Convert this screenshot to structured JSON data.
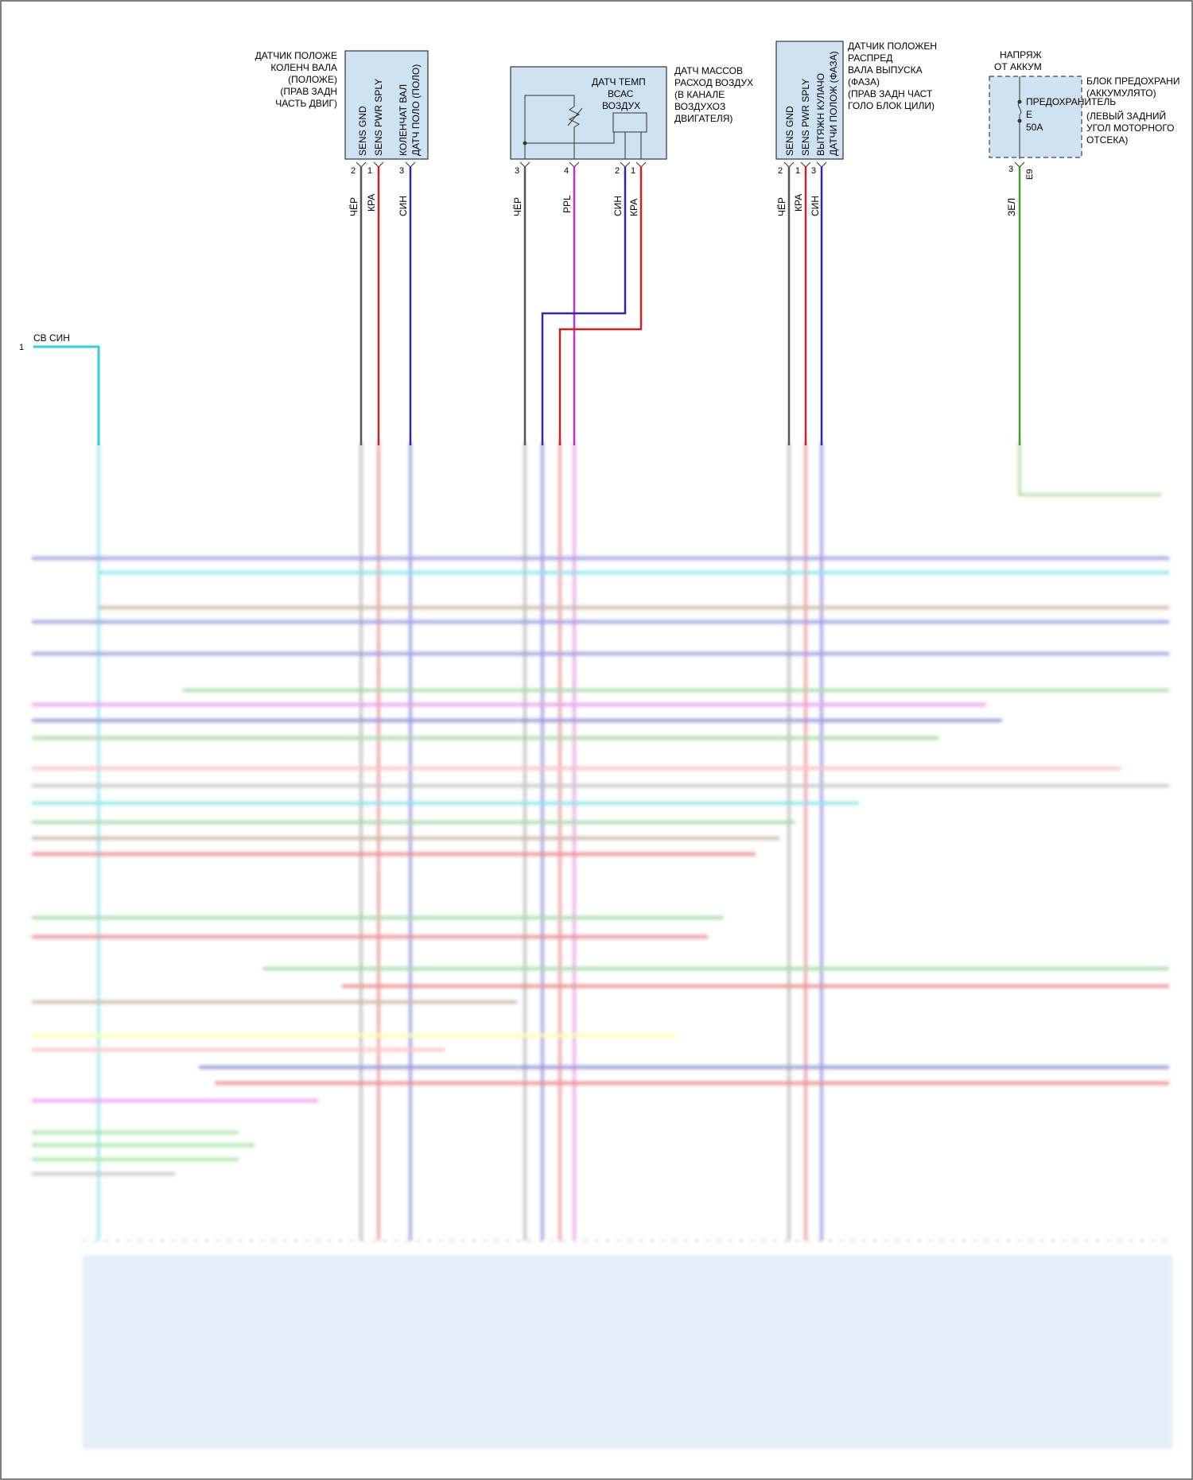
{
  "components": {
    "crank": {
      "title": [
        "ДАТЧИК ПОЛОЖЕ",
        "КОЛЕНЧ ВАЛА",
        "(ПОЛОЖЕ)",
        "(ПРАВ ЗАДН",
        "ЧАСТЬ ДВИГ)"
      ],
      "pins": [
        {
          "num": "2",
          "name": "SENS GND",
          "wire": "ЧЁР",
          "color": "#555555"
        },
        {
          "num": "1",
          "name": "SENS PWR SPLY",
          "wire": "КРА",
          "color": "#cc2020"
        },
        {
          "num": "3",
          "name": "КОЛЕНЧАТ ВАЛ ДАТЧ ПОЛО (ПОЛО)",
          "wire": "СИН",
          "color": "#2a2aa8"
        }
      ]
    },
    "maf": {
      "title": [
        "ДАТЧ МАССОВ",
        "РАСХОД ВОЗДУХ",
        "(В КАНАЛЕ",
        "ВОЗДУХОЗ",
        "ДВИГАТЕЛЯ)"
      ],
      "inner_label": [
        "ДАТЧ ТЕМП",
        "ВСАС",
        "ВОЗДУХ"
      ],
      "pins": [
        {
          "num": "3",
          "wire": "ЧЁР",
          "color": "#555555"
        },
        {
          "num": "4",
          "wire": "PPL",
          "color": "#c030c0"
        },
        {
          "num": "2",
          "wire": "СИН",
          "color": "#2a2aa8"
        },
        {
          "num": "1",
          "wire": "КРА",
          "color": "#cc2020"
        }
      ]
    },
    "cam": {
      "title": [
        "ДАТЧИК ПОЛОЖЕН",
        "РАСПРЕД",
        "ВАЛА ВЫПУСКА",
        "(ФАЗА)",
        "(ПРАВ ЗАДН ЧАСТ",
        "ГОЛО БЛОК ЦИЛИ)"
      ],
      "pins": [
        {
          "num": "2",
          "name": "SENS GND",
          "wire": "ЧЁР",
          "color": "#555555"
        },
        {
          "num": "1",
          "name": "SENS PWR SPLY",
          "wire": "КРА",
          "color": "#cc2020"
        },
        {
          "num": "3",
          "name": "ВЫТЯЖН КУЛАЧО ДАТЧИ ПОЛОЖ (ФАЗА)",
          "wire": "СИН",
          "color": "#2a2aa8"
        }
      ]
    },
    "fuse": {
      "supply": [
        "НАПРЯЖ",
        "ОТ АККУМ"
      ],
      "title": [
        "БЛОК ПРЕДОХРАНИ",
        "(АККУМУЛЯТО)",
        "(ЛЕВЫЙ ЗАДНИЙ",
        "УГОЛ МОТОРНОГО",
        "ОТСЕКА)"
      ],
      "inner": [
        "ПРЕДОХРАНИТЕЛЬ",
        "E",
        "50A"
      ],
      "pin": {
        "num": "3",
        "conn": "E9",
        "wire": "ЗЕЛ",
        "color": "#4a9a2a"
      }
    }
  },
  "left_wire": {
    "num": "1",
    "label": "СВ СИН",
    "color": "#30d0e0"
  }
}
